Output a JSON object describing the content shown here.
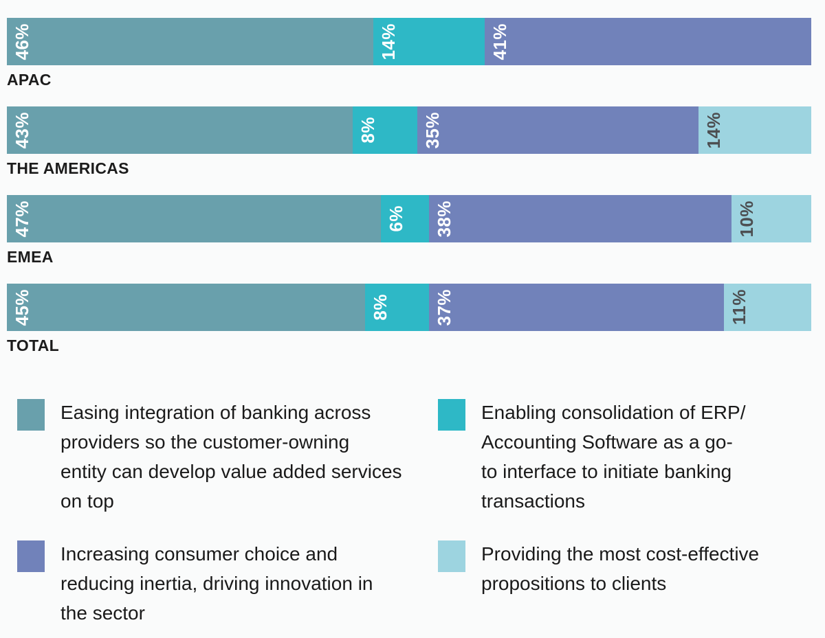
{
  "background": "#fafbfb",
  "chart_data": {
    "type": "bar",
    "variant": "horizontal-stacked",
    "orientation": "horizontal",
    "grid": false,
    "axes_visible": false,
    "legend_position": "bottom",
    "value_suffix": "%",
    "value_label_rotation": -90,
    "categories": [
      "APAC",
      "THE AMERICAS",
      "EMEA",
      "TOTAL"
    ],
    "series": [
      {
        "name": "Easing integration of banking across providers so the customer-owning entity can develop value added services on top",
        "color": "#69a0ac",
        "label_color": "#ffffff",
        "values": [
          46,
          43,
          47,
          45
        ]
      },
      {
        "name": "Enabling consolidation of ERP/Accounting Software as a go-to interface to initiate banking transactions",
        "color": "#2eb8c6",
        "label_color": "#ffffff",
        "values": [
          14,
          8,
          6,
          8
        ]
      },
      {
        "name": "Increasing consumer choice and reducing inertia, driving innovation in the sector",
        "color": "#7182ba",
        "label_color": "#ffffff",
        "values": [
          41,
          35,
          38,
          37
        ]
      },
      {
        "name": "Providing the most cost-effective propositions to clients",
        "color": "#9dd4e0",
        "label_color": "#4d4f52",
        "values": [
          0,
          14,
          10,
          11
        ]
      }
    ]
  },
  "legend": {
    "items": [
      {
        "series_index": 0,
        "lines": "Easing integration of banking across\nproviders so the customer-owning\nentity can develop value added services\non top"
      },
      {
        "series_index": 1,
        "lines": "Enabling consolidation of ERP/\nAccounting Software as a go-\nto interface to initiate banking\ntransactions"
      },
      {
        "series_index": 2,
        "lines": "Increasing consumer choice and\nreducing inertia, driving innovation in\nthe sector"
      },
      {
        "series_index": 3,
        "lines": "Providing the most cost-effective\npropositions to clients"
      }
    ]
  }
}
